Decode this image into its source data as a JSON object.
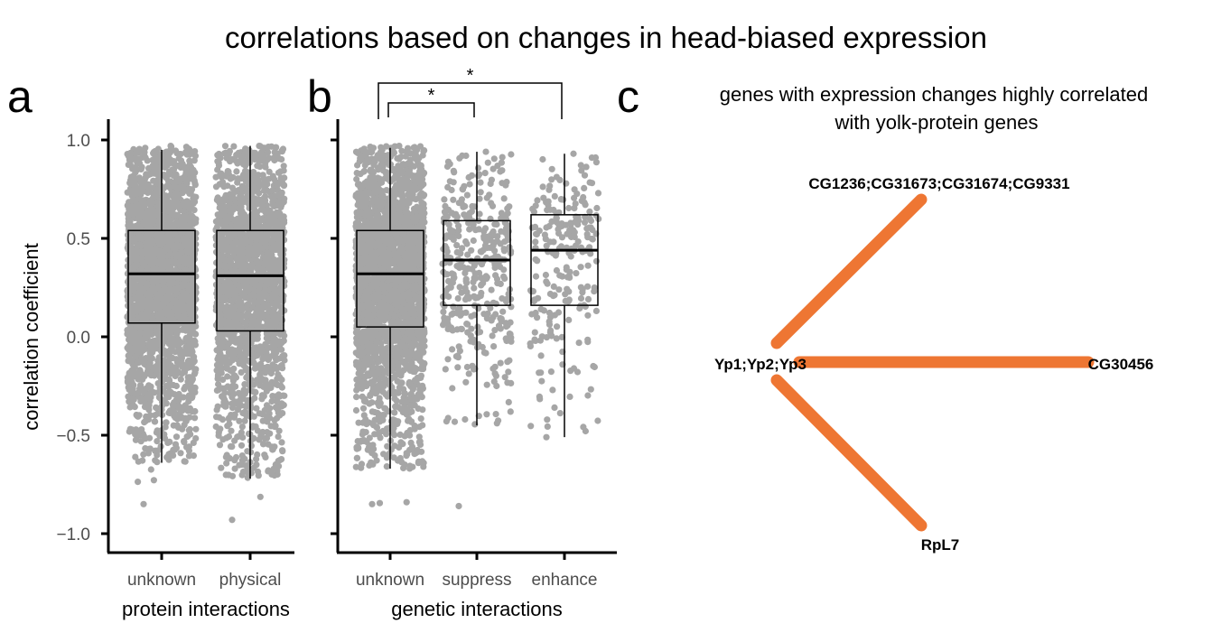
{
  "title": "correlations based on changes in head-biased expression",
  "colors": {
    "points": "#a6a6a6",
    "box_stroke": "#000000",
    "edge": "#ee7633"
  },
  "panels": {
    "a": {
      "letter": "a",
      "ylabel": "correlation coefficient",
      "xlabel": "protein interactions"
    },
    "b": {
      "letter": "b",
      "xlabel": "genetic interactions",
      "significance": [
        {
          "from": "unknown",
          "to": "suppress",
          "label": "*"
        },
        {
          "from": "unknown",
          "to": "enhance",
          "label": "*"
        }
      ]
    },
    "c": {
      "letter": "c",
      "title_line1": "genes with expression changes highly correlated",
      "title_line2": "with yolk-protein genes"
    }
  },
  "chart_data": [
    {
      "panel": "a",
      "type": "boxplot",
      "xlabel": "protein interactions",
      "ylabel": "correlation coefficient",
      "categories": [
        "unknown",
        "physical"
      ],
      "ylim": [
        -1.1,
        1.1
      ],
      "yticks": [
        "1.0",
        "0.5",
        "0.0",
        "-0.5",
        "-1.0"
      ],
      "ytick_values": [
        1.0,
        0.5,
        0.0,
        -0.5,
        -1.0
      ],
      "grid": false,
      "boxes": [
        {
          "category": "unknown",
          "whisker_low": -0.64,
          "q1": 0.07,
          "median": 0.32,
          "q3": 0.54,
          "whisker_high": 0.95,
          "min": -0.85,
          "max": 0.97,
          "n_points": 2600
        },
        {
          "category": "physical",
          "whisker_low": -0.72,
          "q1": 0.03,
          "median": 0.31,
          "q3": 0.54,
          "whisker_high": 0.97,
          "min": -0.93,
          "max": 0.97,
          "n_points": 2000
        }
      ]
    },
    {
      "panel": "b",
      "type": "boxplot",
      "xlabel": "genetic interactions",
      "categories": [
        "unknown",
        "suppress",
        "enhance"
      ],
      "ylim": [
        -1.1,
        1.1
      ],
      "ytick_values": [
        1.0,
        0.5,
        0.0,
        -0.5,
        -1.0
      ],
      "grid": false,
      "boxes": [
        {
          "category": "unknown",
          "whisker_low": -0.67,
          "q1": 0.05,
          "median": 0.32,
          "q3": 0.54,
          "whisker_high": 0.96,
          "min": -0.85,
          "max": 0.97,
          "n_points": 2600
        },
        {
          "category": "suppress",
          "whisker_low": -0.45,
          "q1": 0.16,
          "median": 0.39,
          "q3": 0.59,
          "whisker_high": 0.94,
          "min": -0.86,
          "max": 0.94,
          "n_points": 380
        },
        {
          "category": "enhance",
          "whisker_low": -0.51,
          "q1": 0.16,
          "median": 0.44,
          "q3": 0.62,
          "whisker_high": 0.93,
          "min": -0.51,
          "max": 0.93,
          "n_points": 230
        }
      ]
    },
    {
      "panel": "c",
      "type": "network",
      "nodes": [
        {
          "id": "Yp1;Yp2;Yp3",
          "label": "Yp1;Yp2;Yp3"
        },
        {
          "id": "CG1236;CG31673;CG31674;CG9331",
          "label": "CG1236;CG31673;CG31674;CG9331"
        },
        {
          "id": "CG30456",
          "label": "CG30456"
        },
        {
          "id": "RpL7",
          "label": "RpL7"
        }
      ],
      "edges": [
        {
          "source": "Yp1;Yp2;Yp3",
          "target": "CG1236;CG31673;CG31674;CG9331"
        },
        {
          "source": "Yp1;Yp2;Yp3",
          "target": "CG30456"
        },
        {
          "source": "Yp1;Yp2;Yp3",
          "target": "RpL7"
        }
      ]
    }
  ]
}
